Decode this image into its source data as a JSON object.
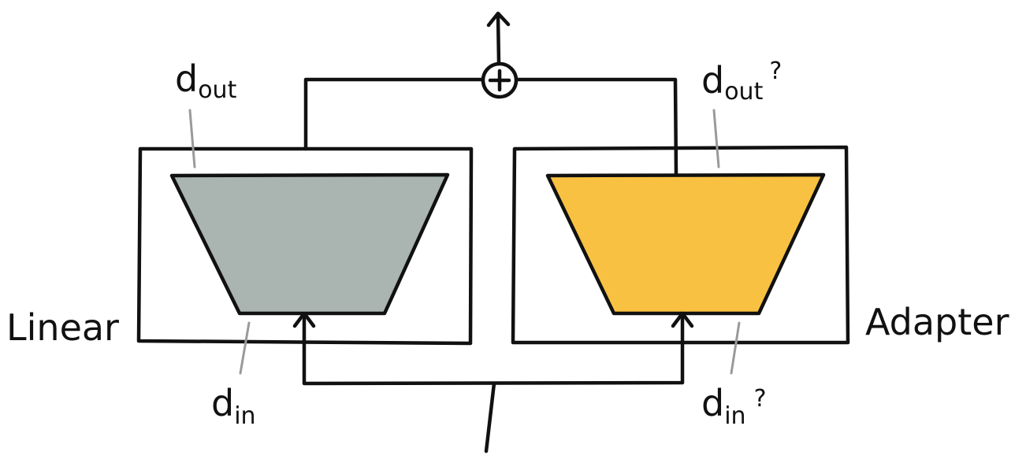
{
  "blocks": {
    "linear": {
      "label": "Linear",
      "fill": "#aab4b1",
      "dout": {
        "base": "d",
        "sub": "out"
      },
      "din": {
        "base": "d",
        "sub": "in"
      }
    },
    "adapter": {
      "label": "Adapter",
      "fill": "#f9c141",
      "dout": {
        "base": "d",
        "sub": "out",
        "suffix": "?"
      },
      "din": {
        "base": "d",
        "sub": "in",
        "suffix": "?"
      }
    }
  },
  "sum_node": {
    "symbol": "+"
  },
  "colors": {
    "ink": "#111111",
    "leader": "#9a9a9a"
  }
}
